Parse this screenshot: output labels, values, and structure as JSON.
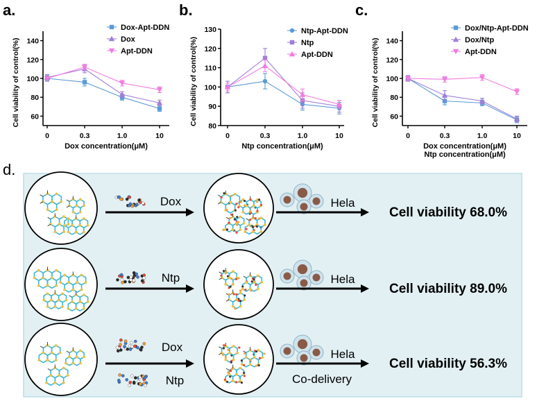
{
  "panel_labels": {
    "a": "a.",
    "b": "b.",
    "c": "c.",
    "d": "d."
  },
  "colors": {
    "blue": "#5b9bd5",
    "purple": "#a07fd8",
    "pink": "#f07ce0",
    "panel_bg": "#e3f0f3",
    "panel_border": "#bcdde6"
  },
  "chart_data": [
    {
      "type": "line",
      "title": "",
      "xlabel": "Dox concentration(μM)",
      "ylabel": "Cell viability of control(%)",
      "categories": [
        "0",
        "0.3",
        "1.0",
        "10"
      ],
      "ylim": [
        50,
        150
      ],
      "yticks": [
        60,
        80,
        100,
        120,
        140
      ],
      "legend": "top-right",
      "series": [
        {
          "name": "Dox-Apt-DDN",
          "color": "#5b9bd5",
          "marker": "square",
          "values": [
            100,
            96,
            80,
            68
          ],
          "errors": [
            3,
            4,
            3,
            3
          ]
        },
        {
          "name": "Dox",
          "color": "#a07fd8",
          "marker": "triangle",
          "values": [
            101,
            110,
            83,
            74
          ],
          "errors": [
            3,
            4,
            3,
            3
          ]
        },
        {
          "name": "Apt-DDN",
          "color": "#f07ce0",
          "marker": "triangle-down",
          "values": [
            100,
            112,
            95,
            88
          ],
          "errors": [
            2,
            3,
            3,
            3
          ]
        }
      ]
    },
    {
      "type": "line",
      "title": "",
      "xlabel": "Ntp concentration(μM)",
      "ylabel": "Cell viability of control(%)",
      "categories": [
        "0",
        "0.3",
        "1.0",
        "10"
      ],
      "ylim": [
        80,
        130
      ],
      "yticks": [
        80,
        90,
        100,
        110,
        120,
        130
      ],
      "legend": "top-right",
      "series": [
        {
          "name": "Ntp-Apt-DDN",
          "color": "#5b9bd5",
          "marker": "circle",
          "values": [
            100,
            103,
            91,
            89
          ],
          "errors": [
            3,
            4,
            3,
            3
          ]
        },
        {
          "name": "Ntp",
          "color": "#a07fd8",
          "marker": "square",
          "values": [
            100,
            115,
            93,
            90
          ],
          "errors": [
            3,
            5,
            4,
            3
          ]
        },
        {
          "name": "Apt-DDN",
          "color": "#f07ce0",
          "marker": "triangle",
          "values": [
            100,
            111,
            96,
            91
          ],
          "errors": [
            2,
            3,
            3,
            2
          ]
        }
      ]
    },
    {
      "type": "line",
      "title": "",
      "xlabel": "Dox concentration(μM)",
      "xlabel2": "Ntp concentration(μM)",
      "ylabel": "Cell viability of control(%)",
      "categories": [
        "0",
        "0.3",
        "1.0",
        "10"
      ],
      "ylim": [
        50,
        150
      ],
      "yticks": [
        60,
        80,
        100,
        120,
        140
      ],
      "legend": "top-right",
      "series": [
        {
          "name": "Dox/Ntp-Apt-DDN",
          "color": "#5b9bd5",
          "marker": "square",
          "values": [
            100,
            76,
            74,
            56
          ],
          "errors": [
            3,
            4,
            3,
            3
          ]
        },
        {
          "name": "Dox/Ntp",
          "color": "#a07fd8",
          "marker": "triangle",
          "values": [
            100,
            82,
            76,
            57
          ],
          "errors": [
            3,
            5,
            3,
            3
          ]
        },
        {
          "name": "Apt-DDN",
          "color": "#f07ce0",
          "marker": "triangle-down",
          "values": [
            100,
            99,
            101,
            86
          ],
          "errors": [
            2,
            3,
            3,
            3
          ]
        }
      ]
    }
  ],
  "schematic": {
    "rows": [
      {
        "drug_labels": [
          "Dox"
        ],
        "cell_label": "Hela",
        "result": "Cell viability 68.0%",
        "note": ""
      },
      {
        "drug_labels": [
          "Ntp"
        ],
        "cell_label": "Hela",
        "result": "Cell viability 89.0%",
        "note": ""
      },
      {
        "drug_labels": [
          "Dox",
          "Ntp"
        ],
        "cell_label": "Hela",
        "result": "Cell viability 56.3%",
        "note": "Co-delivery"
      }
    ]
  }
}
